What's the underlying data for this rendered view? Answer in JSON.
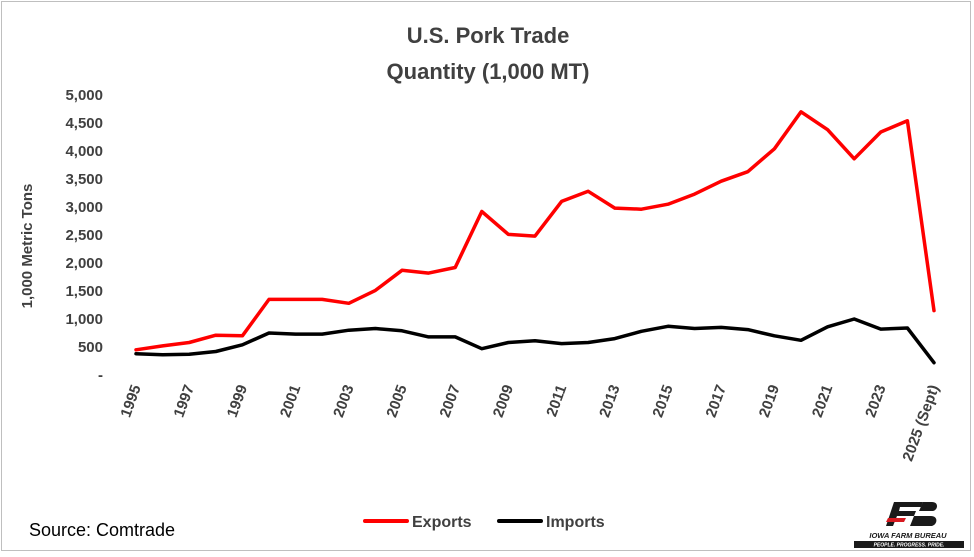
{
  "chart_data": {
    "type": "line",
    "title": "U.S. Pork Trade",
    "subtitle": "Quantity (1,000 MT)",
    "ylabel": "1,000 Metric Tons",
    "xlabel": "",
    "ylim": [
      0,
      5000
    ],
    "y_ticks": [
      0,
      500,
      1000,
      1500,
      2000,
      2500,
      3000,
      3500,
      4000,
      4500,
      5000
    ],
    "y_tick_labels": [
      "-",
      "500",
      "1,000",
      "1,500",
      "2,000",
      "2,500",
      "3,000",
      "3,500",
      "4,000",
      "4,500",
      "5,000"
    ],
    "categories": [
      "1995",
      "1996",
      "1997",
      "1998",
      "1999",
      "2000",
      "2001",
      "2002",
      "2003",
      "2004",
      "2005",
      "2006",
      "2007",
      "2008",
      "2009",
      "2010",
      "2011",
      "2012",
      "2013",
      "2014",
      "2015",
      "2016",
      "2017",
      "2018",
      "2019",
      "2020",
      "2021",
      "2022",
      "2023",
      "2024",
      "2025 (Sept)"
    ],
    "x_tick_labels": [
      "1995",
      "",
      "1997",
      "",
      "1999",
      "",
      "2001",
      "",
      "2003",
      "",
      "2005",
      "",
      "2007",
      "",
      "2009",
      "",
      "2011",
      "",
      "2013",
      "",
      "2015",
      "",
      "2017",
      "",
      "2019",
      "",
      "2021",
      "",
      "2023",
      "",
      "2025 (Sept)"
    ],
    "grid": false,
    "legend_position": "bottom",
    "series": [
      {
        "name": "Exports",
        "color": "#ff0000",
        "values": [
          450,
          520,
          580,
          710,
          700,
          1350,
          1350,
          1350,
          1280,
          1510,
          1870,
          1820,
          1920,
          2920,
          2510,
          2480,
          3100,
          3280,
          2980,
          2960,
          3050,
          3230,
          3460,
          3630,
          4040,
          4700,
          4380,
          3860,
          4340,
          4540,
          1150
        ]
      },
      {
        "name": "Imports",
        "color": "#000000",
        "values": [
          380,
          360,
          370,
          420,
          540,
          750,
          730,
          730,
          800,
          830,
          790,
          680,
          680,
          470,
          580,
          610,
          560,
          580,
          650,
          780,
          870,
          830,
          850,
          810,
          700,
          620,
          860,
          1000,
          820,
          840,
          220
        ]
      }
    ]
  },
  "source": "Source: Comtrade",
  "logo": {
    "name": "IOWA FARM BUREAU",
    "tagline": "PEOPLE. PROGRESS. PRIDE.",
    "colors": {
      "dark": "#1a1a1a",
      "accent": "#d71920"
    }
  }
}
